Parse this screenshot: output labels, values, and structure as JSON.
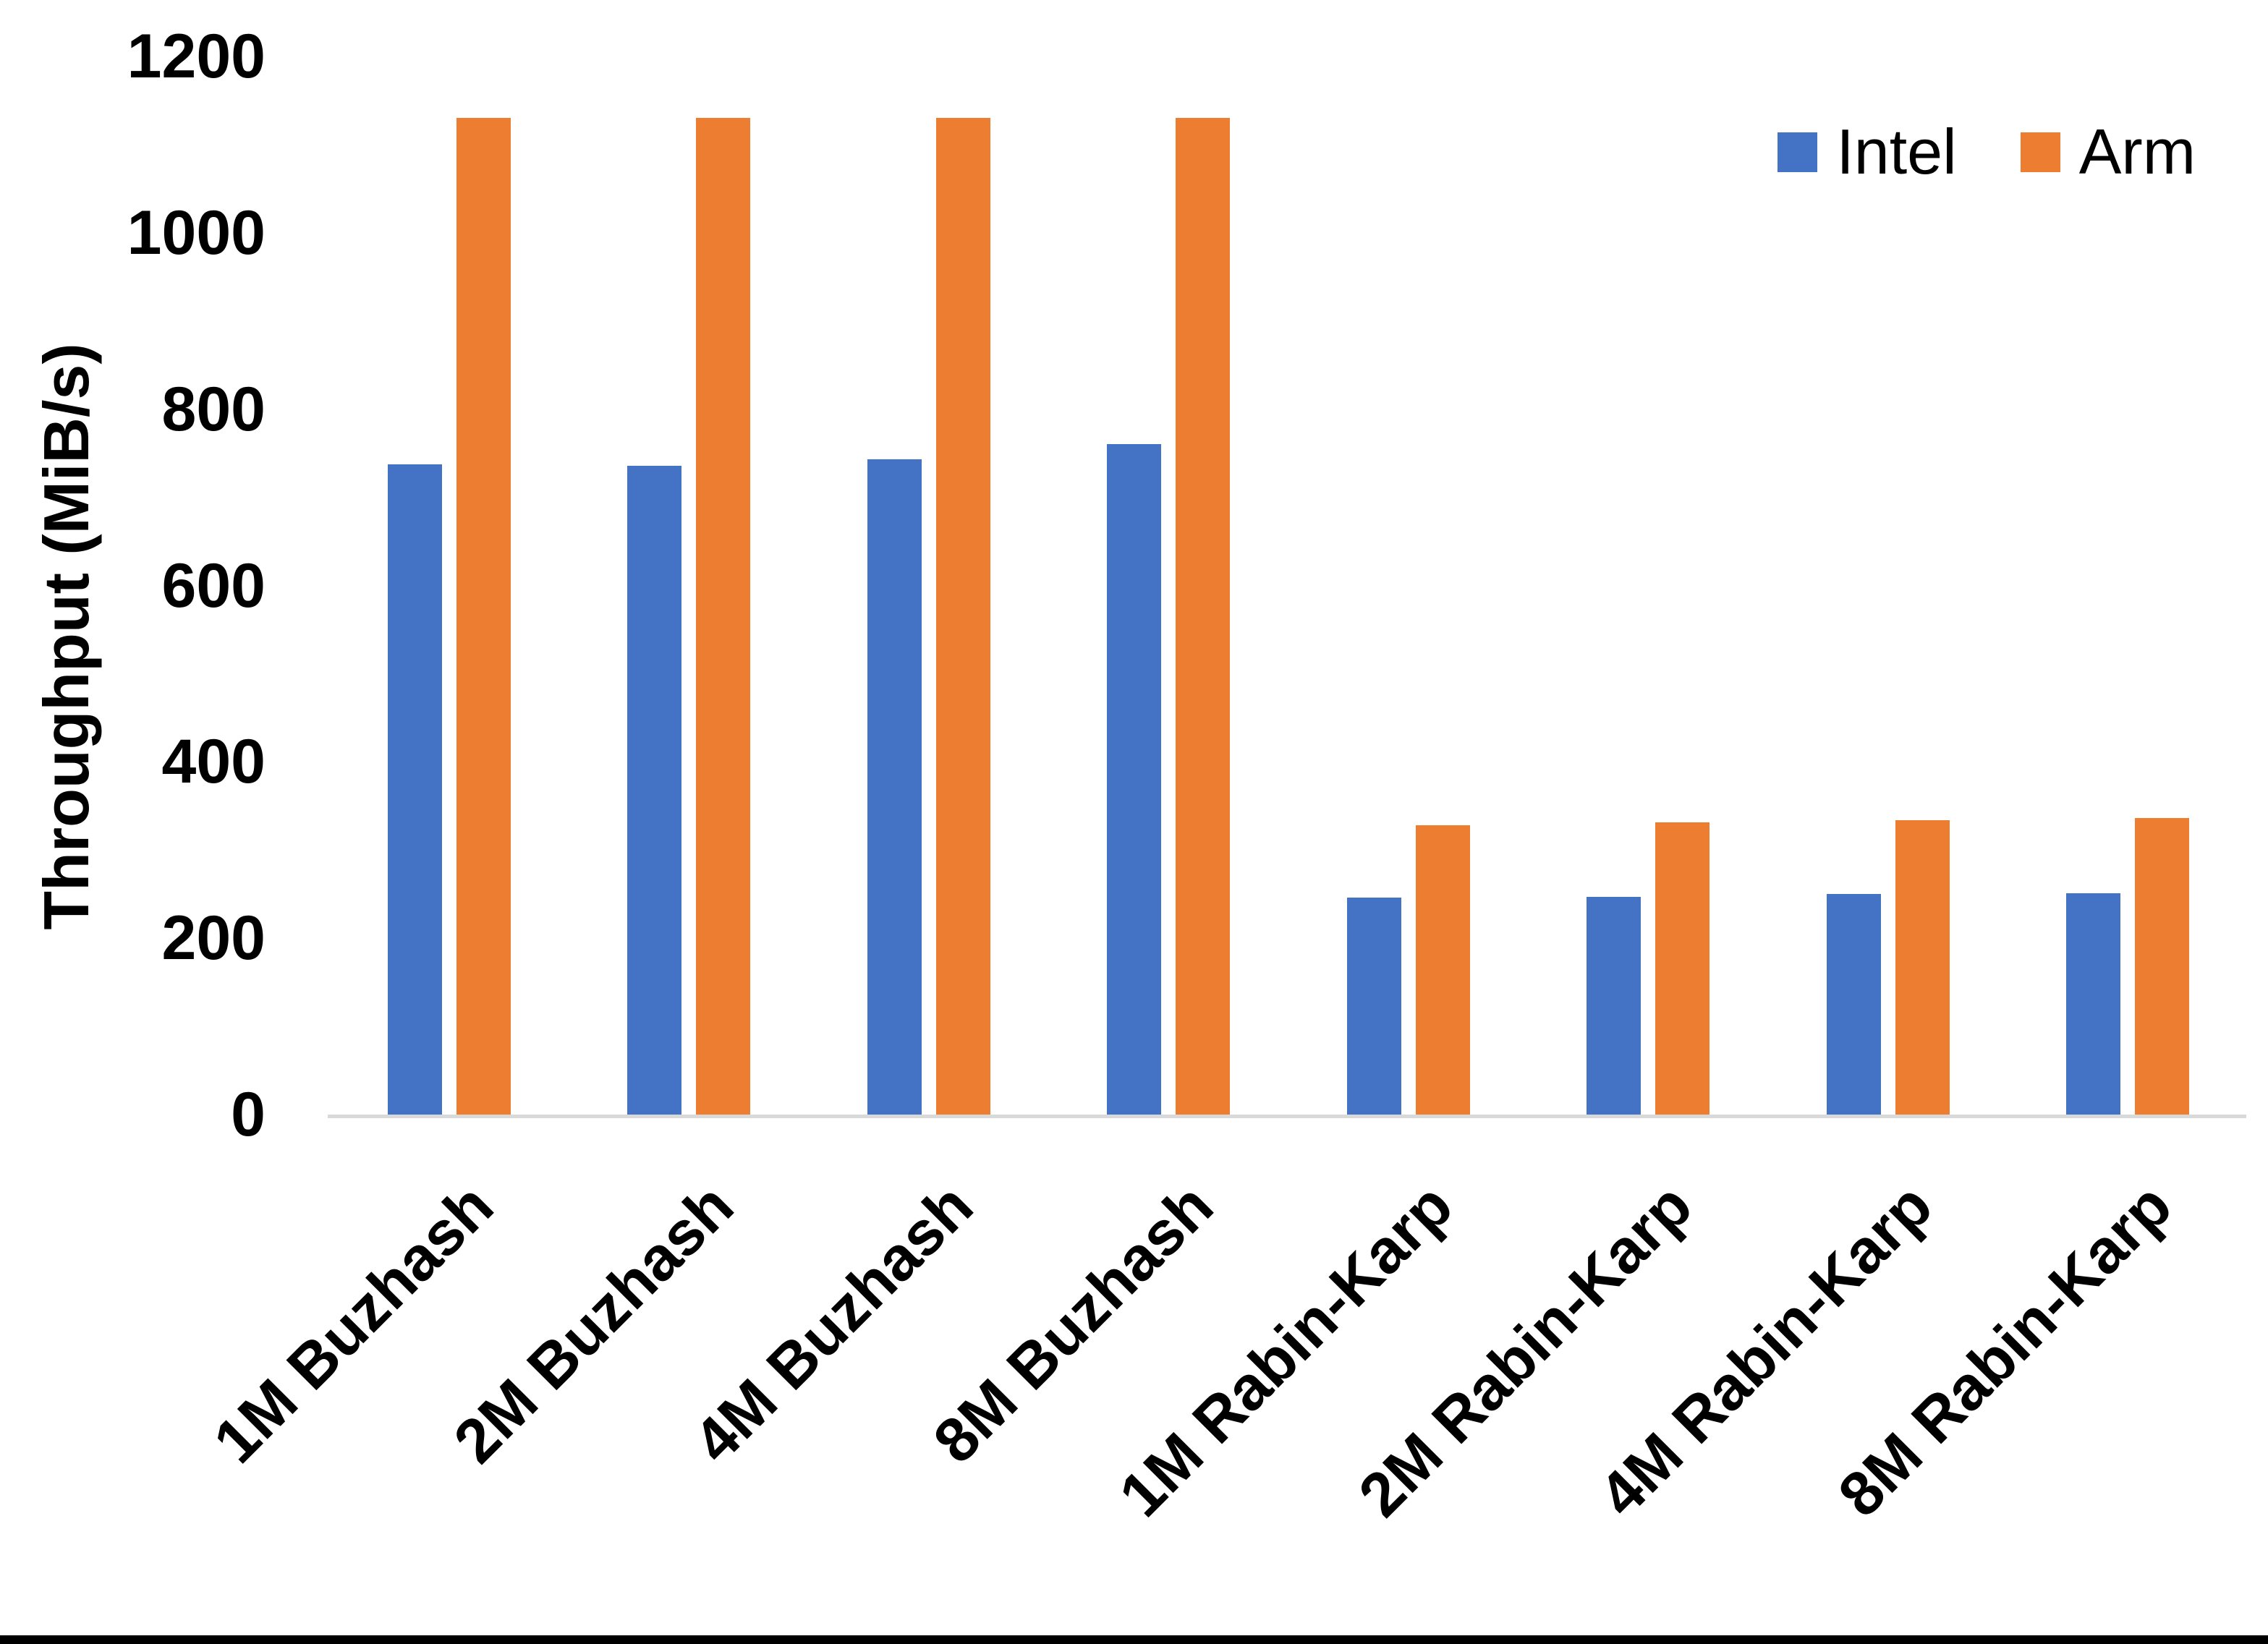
{
  "page": {
    "background": "#FFFFFF",
    "bottom_border_color": "#000000",
    "axis_line_color": "#D9D9D9",
    "text_color": "#000000"
  },
  "chart_data": {
    "type": "bar",
    "title": "",
    "xlabel": "",
    "ylabel": "Throughput (MiB/s)",
    "ylim": [
      0,
      1200
    ],
    "yticks": [
      0,
      200,
      400,
      600,
      800,
      1000,
      1200
    ],
    "grid": false,
    "legend_position": "top-right",
    "categories": [
      "1M Buzhash",
      "2M Buzhash",
      "4M Buzhash",
      "8M Buzhash",
      "1M Rabin-Karp",
      "2M Rabin-Karp",
      "4M Rabin-Karp",
      "8M Rabin-Karp"
    ],
    "series": [
      {
        "name": "Intel",
        "color": "#4472C4",
        "values": [
          737,
          736,
          743,
          760,
          246,
          247,
          250,
          251
        ]
      },
      {
        "name": "Arm",
        "color": "#ED7D31",
        "values": [
          1130,
          1130,
          1130,
          1130,
          328,
          331,
          334,
          336
        ]
      }
    ]
  }
}
